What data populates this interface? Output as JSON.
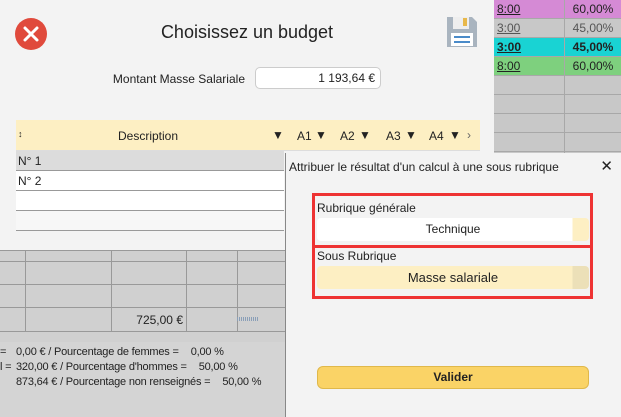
{
  "background_table": {
    "rows": [
      {
        "time": "8:00",
        "pct": "60,00%",
        "color": "#d58ad5"
      },
      {
        "time": "3:00",
        "pct": "45,00%",
        "color": "#c8c8c8"
      },
      {
        "time": "3:00",
        "pct": "45,00%",
        "color": "#19d3d3"
      },
      {
        "time": "8:00",
        "pct": "60,00%",
        "color": "#7ed07e"
      }
    ]
  },
  "budget_dialog": {
    "title": "Choisissez un budget",
    "amount_label": "Montant Masse Salariale",
    "amount_value": "1 193,64 €",
    "table": {
      "sort_icon": "↕",
      "headers": [
        "Description",
        "A1",
        "A2",
        "A3",
        "A4"
      ],
      "rows": [
        "N° 1",
        "N° 2",
        "",
        ""
      ]
    }
  },
  "background_grid": {
    "amount": "725,00 €"
  },
  "summary": [
    {
      "left": "=",
      "amount": "0,00 € / Pourcentage de femmes =",
      "pct": "0,00 %"
    },
    {
      "left": "l =",
      "amount": "320,00 € / Pourcentage d'hommes =",
      "pct": "50,00 %"
    },
    {
      "left": "",
      "amount": "873,64 € / Pourcentage non renseignés =",
      "pct": "50,00 %"
    }
  ],
  "assign_dialog": {
    "title": "Attribuer le résultat d'un calcul à une sous rubrique",
    "rubrique_label": "Rubrique générale",
    "rubrique_value": "Technique",
    "sous_label": "Sous Rubrique",
    "sous_value": "Masse salariale",
    "validate": "Valider"
  },
  "colors": {
    "accent": "#fad366",
    "header": "#fdefc3",
    "highlight": "#ee3333",
    "close": "#e04a3c"
  }
}
